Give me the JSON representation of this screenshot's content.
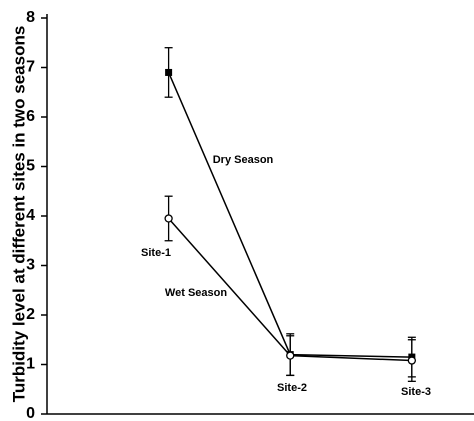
{
  "chart_data": {
    "type": "line",
    "y_label": "Turbidity level at different sites in two seasons",
    "x": [
      1,
      2,
      3
    ],
    "xlim": [
      0,
      3.47
    ],
    "ylim": [
      0,
      8
    ],
    "yticks": [
      0,
      1,
      2,
      3,
      4,
      5,
      6,
      7,
      8
    ],
    "site_labels": [
      "Site-1",
      "Site-2",
      "Site-3"
    ],
    "series": [
      {
        "name": "Dry Season",
        "color": "#000000",
        "marker": "square",
        "values": [
          6.9,
          1.2,
          1.15
        ],
        "errors": [
          0.5,
          0.42,
          0.4
        ]
      },
      {
        "name": "Wet Season",
        "color": "#000000",
        "marker": "circle",
        "values": [
          3.95,
          1.18,
          1.08
        ],
        "errors": [
          0.45,
          0.4,
          0.42
        ]
      }
    ]
  }
}
